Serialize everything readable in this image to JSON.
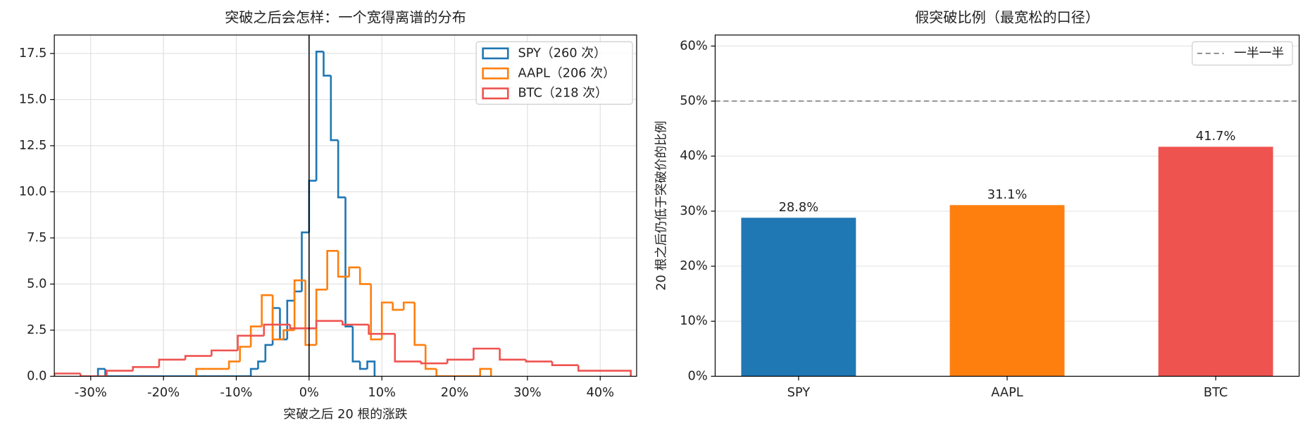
{
  "chart_data": [
    {
      "type": "hist",
      "title": "突破之后会怎样：一个宽得离谱的分布",
      "xlabel": "突破之后 20 根的涨跌",
      "xlim": [
        -35,
        45
      ],
      "xticks": [
        {
          "value": -30,
          "label": "-30%"
        },
        {
          "value": -20,
          "label": "-20%"
        },
        {
          "value": -10,
          "label": "-10%"
        },
        {
          "value": 0,
          "label": "0%"
        },
        {
          "value": 10,
          "label": "10%"
        },
        {
          "value": 20,
          "label": "20%"
        },
        {
          "value": 30,
          "label": "30%"
        },
        {
          "value": 40,
          "label": "40%"
        }
      ],
      "ylim": [
        0,
        18.5
      ],
      "yticks": [
        {
          "value": 0,
          "label": "0.0"
        },
        2.5,
        {
          "value": 5,
          "label": "5.0"
        },
        {
          "value": 7.5,
          "label": "7.5"
        },
        {
          "value": 10,
          "label": "10.0"
        },
        12.5,
        {
          "value": 15,
          "label": "15.0"
        },
        17.5
      ],
      "grid": true,
      "vline": 0,
      "legend": "upper right",
      "series": [
        {
          "name": "SPY（260 次）",
          "color": "#1f77b4",
          "bins": [
            -29,
            -28,
            -27,
            -26,
            -25,
            -24,
            -23,
            -22,
            -21,
            -20,
            -19,
            -18,
            -17,
            -16,
            -15,
            -14,
            -13,
            -12,
            -11,
            -10,
            -9,
            -8,
            -7,
            -6,
            -5,
            -4,
            -3,
            -2,
            -1,
            0,
            1,
            2,
            3,
            4,
            5,
            6,
            7,
            8,
            9
          ],
          "values": [
            0.4,
            0,
            0,
            0,
            0,
            0,
            0,
            0,
            0,
            0,
            0,
            0,
            0,
            0,
            0,
            0,
            0,
            0,
            0,
            0,
            0,
            0.4,
            0.8,
            1.7,
            3.7,
            2.0,
            4.1,
            4.6,
            7.8,
            10.6,
            17.6,
            16.3,
            12.8,
            9.7,
            2.7,
            0.8,
            0.4,
            0.8
          ]
        },
        {
          "name": "AAPL（206 次）",
          "color": "#ff7f0e",
          "bins": [
            -15.5,
            -14,
            -12.5,
            -11,
            -9.5,
            -8,
            -6.5,
            -5,
            -3.5,
            -2,
            -0.5,
            1,
            2.5,
            4,
            5.5,
            7,
            8.5,
            10,
            11.5,
            13,
            14.5,
            16,
            17.5,
            19,
            20.5,
            22,
            23.5,
            25
          ],
          "values": [
            0.4,
            0.4,
            0.4,
            0.8,
            1.6,
            2.7,
            4.4,
            2.0,
            2.5,
            5.2,
            1.7,
            4.7,
            6.8,
            5.4,
            5.9,
            5.0,
            2.0,
            4.0,
            3.6,
            4.0,
            1.7,
            0.4,
            0,
            0,
            0,
            0,
            0.4
          ]
        },
        {
          "name": "BTC（218 次）",
          "color": "#ef5350",
          "bins": [
            -35,
            -31.4,
            -27.8,
            -24.2,
            -20.6,
            -17,
            -13.4,
            -9.8,
            -6.2,
            -2.6,
            1,
            4.6,
            8.2,
            11.8,
            15.4,
            19,
            22.6,
            26.2,
            29.8,
            33.4,
            37,
            40.6,
            44.2
          ],
          "values": [
            0.15,
            0,
            0.3,
            0.5,
            0.9,
            1.1,
            1.4,
            2.2,
            2.8,
            2.6,
            3.0,
            2.8,
            2.3,
            0.8,
            0.7,
            0.9,
            1.5,
            0.9,
            0.8,
            0.6,
            0.3,
            0.3
          ]
        }
      ]
    },
    {
      "type": "bar",
      "title": "假突破比例（最宽松的口径）",
      "ylabel": "20 根之后仍低于突破价的比例",
      "categories": [
        "SPY",
        "AAPL",
        "BTC"
      ],
      "values": [
        28.8,
        31.1,
        41.7
      ],
      "value_labels": [
        "28.8%",
        "31.1%",
        "41.7%"
      ],
      "colors": [
        "#1f77b4",
        "#ff7f0e",
        "#ef5350"
      ],
      "ylim": [
        0,
        62
      ],
      "yticks": [
        {
          "value": 0,
          "label": "0%"
        },
        {
          "value": 10,
          "label": "10%"
        },
        {
          "value": 20,
          "label": "20%"
        },
        {
          "value": 30,
          "label": "30%"
        },
        {
          "value": 40,
          "label": "40%"
        },
        {
          "value": 50,
          "label": "50%"
        },
        {
          "value": 60,
          "label": "60%"
        }
      ],
      "grid": true,
      "hline": {
        "value": 50,
        "name": "一半一半",
        "color": "#888888"
      },
      "legend": "upper right"
    }
  ]
}
